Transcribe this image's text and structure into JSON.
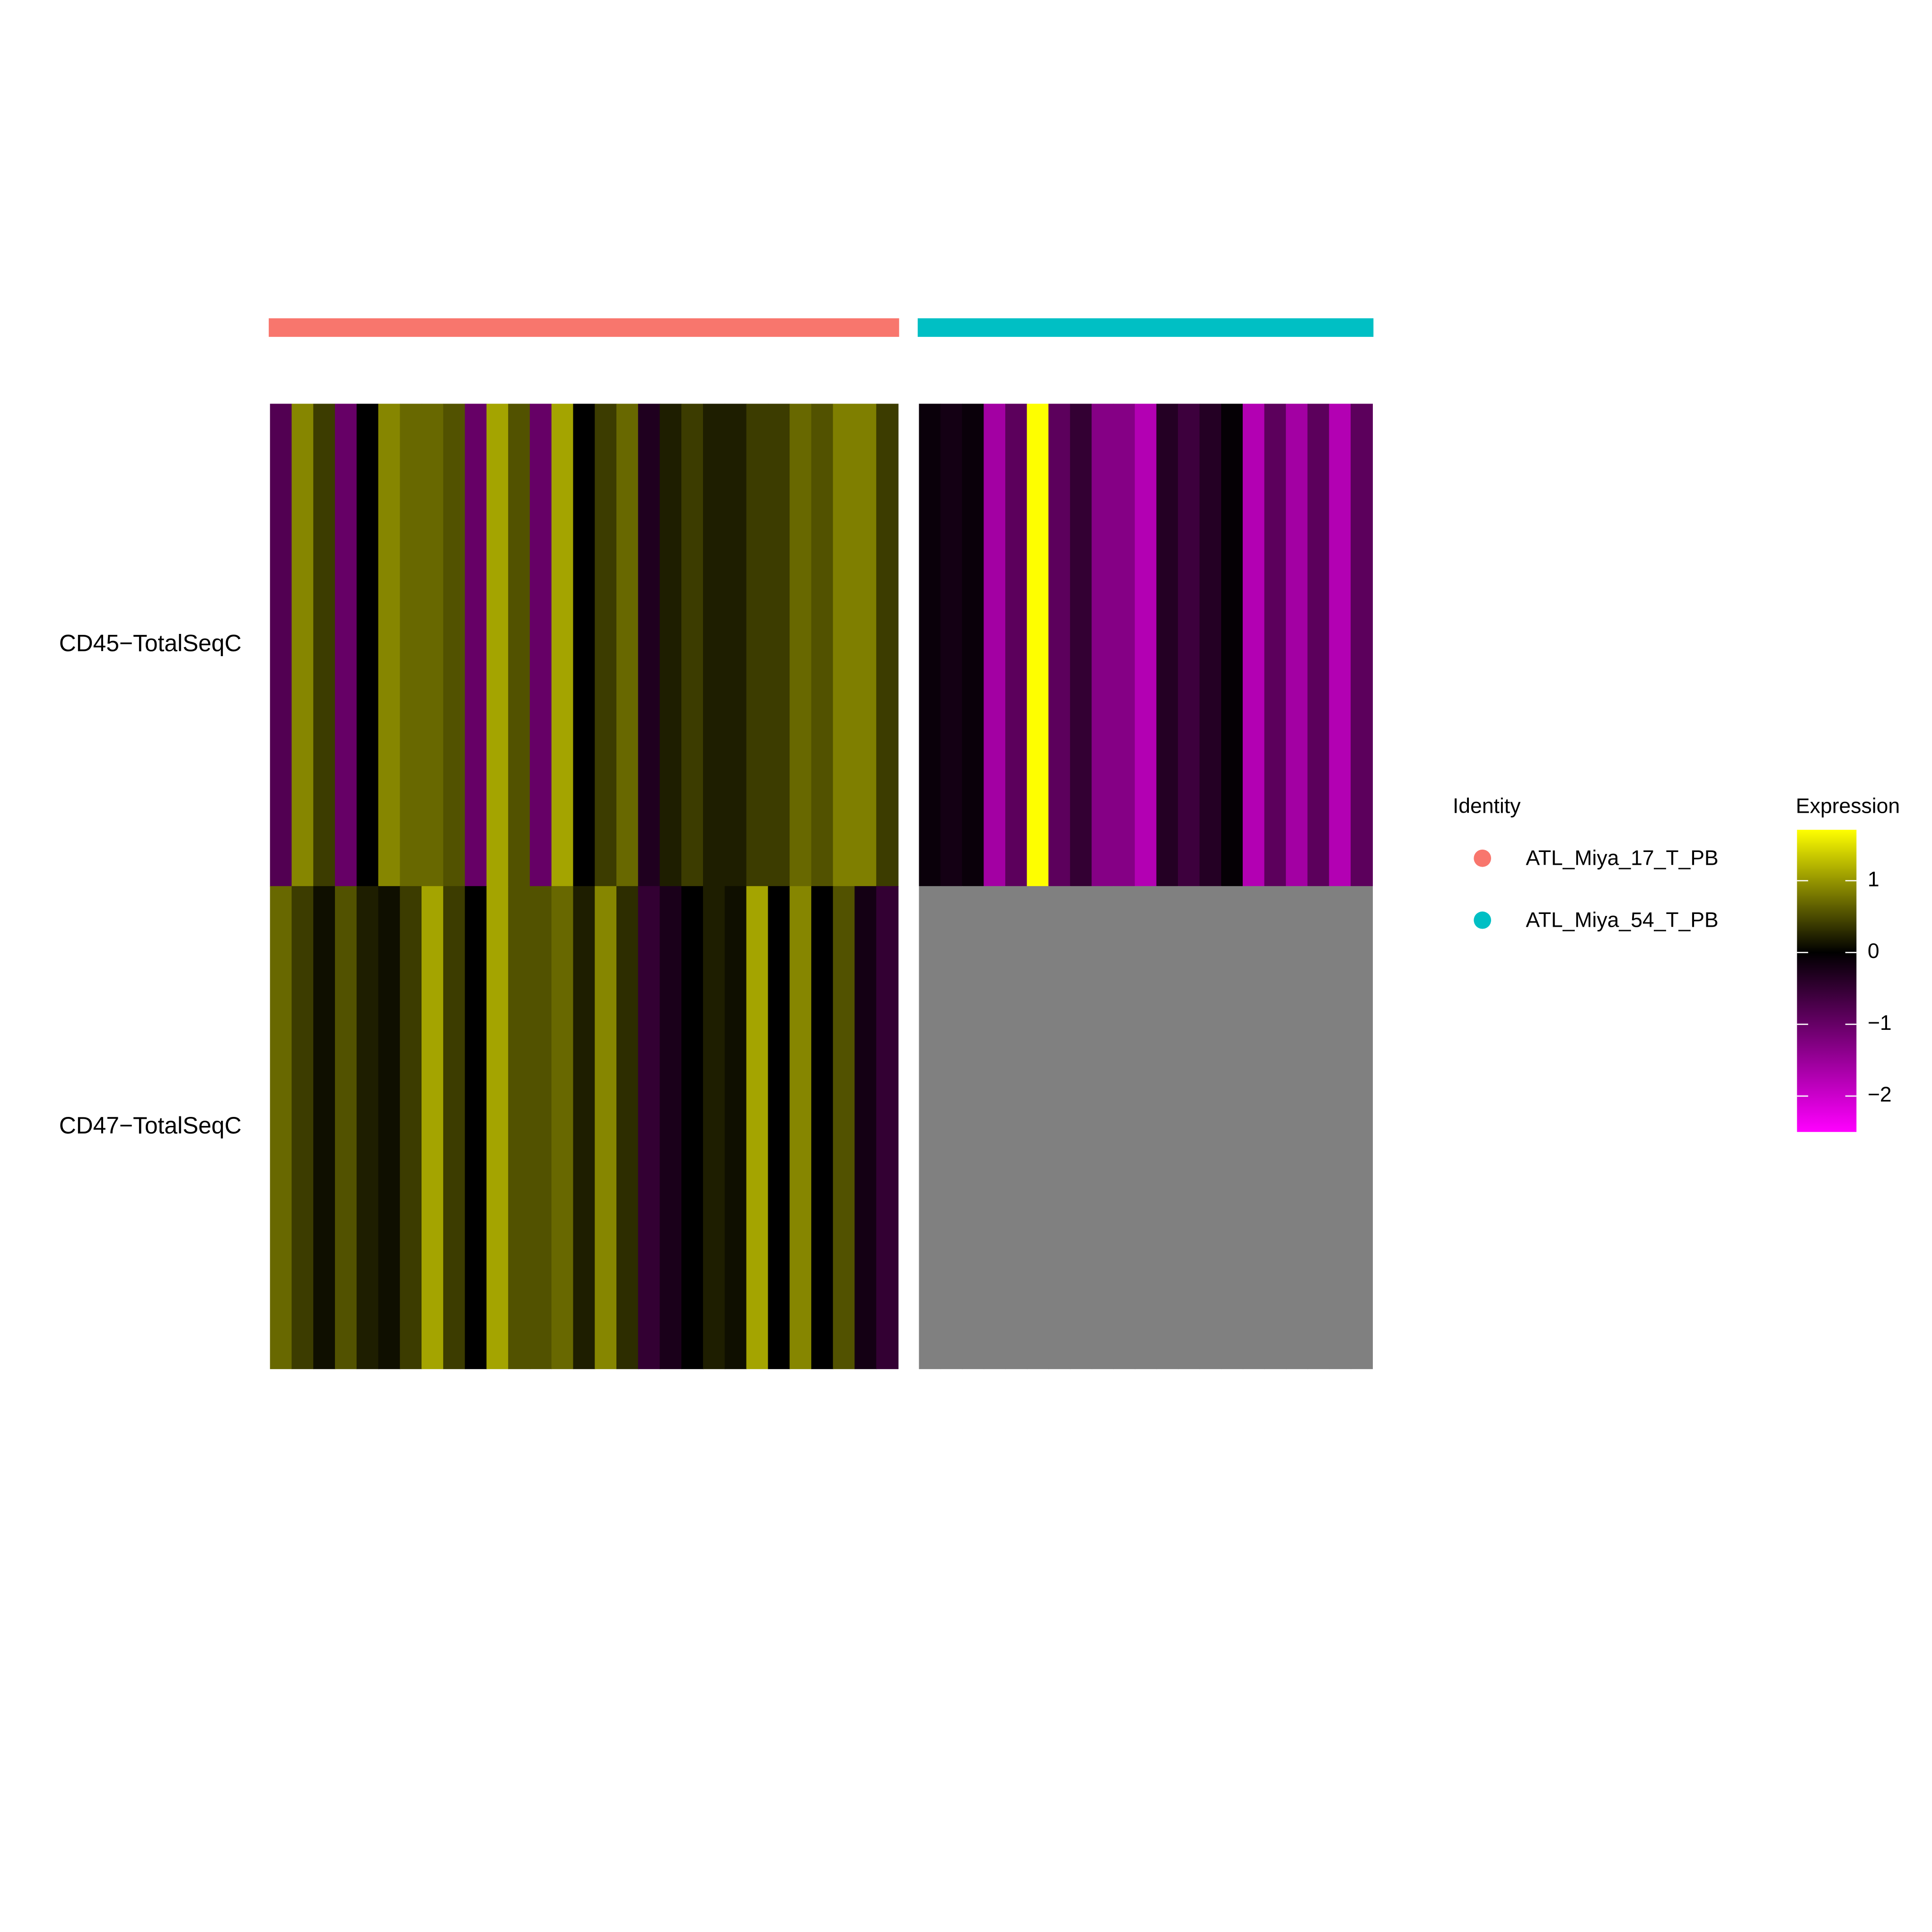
{
  "chart_data": {
    "type": "heatmap",
    "rows": [
      "CD45−TotalSeqC",
      "CD47−TotalSeqC"
    ],
    "groups": [
      {
        "name": "ATL_Miya_17_T_PB",
        "color": "#F8766D",
        "values": [
          [
            -0.8,
            0.9,
            0.4,
            -1.0,
            0,
            0.9,
            0.7,
            0.7,
            0.55,
            -1.0,
            1.1,
            0.55,
            -1.0,
            1.1,
            0,
            0.4,
            0.7,
            -0.3,
            0.2,
            0.4,
            0.2,
            0.2,
            0.4,
            0.4,
            0.7,
            0.55,
            0.85,
            0.85,
            0.4
          ],
          [
            0.7,
            0.4,
            0.1,
            0.55,
            0.2,
            0.1,
            0.4,
            1.1,
            0.4,
            0,
            1.1,
            0.55,
            0.55,
            0.7,
            0.2,
            0.9,
            0.3,
            -0.5,
            -0.25,
            0,
            0.2,
            0.1,
            1.1,
            0,
            0.9,
            0,
            0.55,
            -0.2,
            -0.5
          ]
        ]
      },
      {
        "name": "ATL_Miya_54_T_PB",
        "color": "#00BFC4",
        "values": [
          [
            -0.1,
            -0.2,
            -0.1,
            -1.6,
            -0.9,
            1.7,
            -0.9,
            -0.5,
            -1.3,
            -1.3,
            -1.75,
            -0.35,
            -0.6,
            -0.35,
            -0.05,
            -1.75,
            -0.9,
            -1.6,
            -0.9,
            -1.75,
            -0.9
          ],
          [
            null,
            null,
            null,
            null,
            null,
            null,
            null,
            null,
            null,
            null,
            null,
            null,
            null,
            null,
            null,
            null,
            null,
            null,
            null,
            null,
            null
          ]
        ]
      }
    ],
    "identity_legend_title": "Identity",
    "color_legend_title": "Expression",
    "color_limits": [
      -2.5,
      1.71
    ],
    "color_ticks": [
      {
        "value": 1,
        "label": "1"
      },
      {
        "value": 0,
        "label": "0"
      },
      {
        "value": -1,
        "label": "−1"
      },
      {
        "value": -2,
        "label": "−2"
      }
    ],
    "low_color": "#FF00FF",
    "mid_color": "#000000",
    "high_color": "#FFFF00",
    "na_color": "#808080"
  }
}
